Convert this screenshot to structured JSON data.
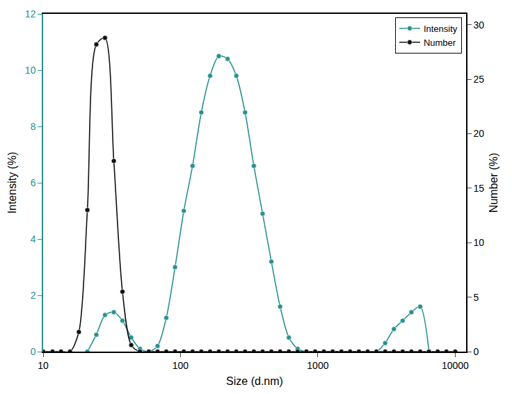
{
  "chart_data": {
    "type": "line",
    "x_label": "Size (d.nm)",
    "y_label": "Intensity (%)",
    "y2_label": "Number (%)",
    "log": "x",
    "grid": false,
    "legend": "upper right",
    "xlim": [
      10,
      12000
    ],
    "xticks": [
      10,
      100,
      1000,
      10000
    ],
    "ylim": [
      0,
      12
    ],
    "yticks": [
      0,
      2,
      4,
      6,
      8,
      10,
      12
    ],
    "y2lim": [
      0,
      31
    ],
    "y2ticks": [
      0,
      5,
      10,
      15,
      20,
      25,
      30
    ],
    "x": [
      10,
      11.7,
      13.5,
      15.7,
      18.2,
      21.0,
      24.4,
      28.2,
      32.7,
      37.8,
      43.8,
      50.7,
      58.8,
      68.1,
      78.8,
      91.3,
      105.7,
      122.4,
      141.8,
      164.2,
      190.1,
      220.2,
      255.0,
      295.3,
      342.0,
      396.1,
      458.7,
      531.2,
      615.1,
      712.4,
      825.0,
      955.4,
      1106,
      1281,
      1484,
      1718,
      1990,
      2305,
      2669,
      3091,
      3580,
      4145,
      4801,
      5560,
      6439,
      7456,
      8635,
      10000
    ],
    "series": [
      {
        "name": "Intensity",
        "color": "#2a9090",
        "marker": "circle",
        "line_style": "solid",
        "values": [
          null,
          null,
          null,
          null,
          null,
          0,
          0.6,
          1.3,
          1.4,
          1.1,
          0.5,
          0.1,
          0,
          0.2,
          1.2,
          3.0,
          5.0,
          6.6,
          8.5,
          9.8,
          10.5,
          10.4,
          9.8,
          8.5,
          6.6,
          4.9,
          3.2,
          1.6,
          0.5,
          0.1,
          0,
          0,
          0,
          0,
          0,
          0,
          0,
          0,
          0,
          0.3,
          0.8,
          1.1,
          1.4,
          1.6,
          0,
          null,
          null,
          null
        ]
      },
      {
        "name": "Number",
        "color": "#111111",
        "marker": "circle",
        "line_style": "solid",
        "axis": "y2",
        "values": [
          0,
          0,
          0,
          0,
          1.8,
          13,
          28.2,
          28.8,
          17.5,
          5.5,
          0.6,
          0,
          0,
          0,
          0,
          0,
          0,
          0,
          0,
          0,
          0,
          0,
          0,
          0,
          0,
          0,
          0,
          0,
          0,
          0,
          0,
          0,
          0,
          0,
          0,
          0,
          0,
          0,
          0,
          0,
          0,
          0,
          0,
          0,
          0,
          0,
          0,
          0
        ]
      }
    ]
  }
}
